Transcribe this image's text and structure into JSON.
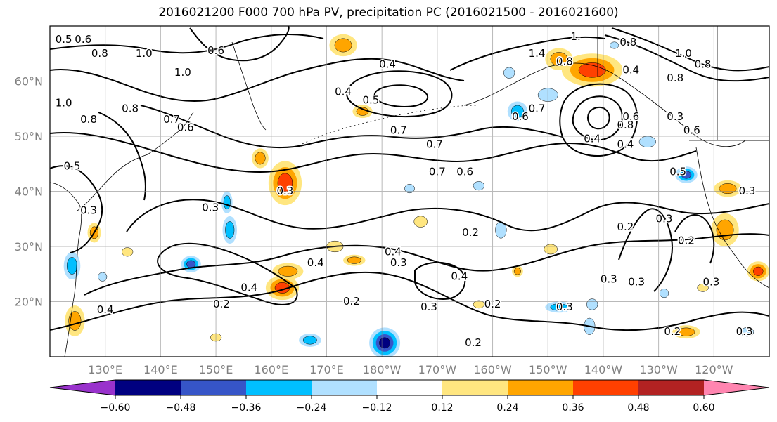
{
  "title": "2016021200 F000 700 hPa PV, precipitation PC (2016021500 - 2016021600)",
  "map": {
    "projection": "cylindrical",
    "lon_range": [
      120,
      250
    ],
    "lat_range": [
      10,
      70
    ],
    "grid": true,
    "lat_labels": [
      {
        "lat": 60,
        "label": "60°N"
      },
      {
        "lat": 50,
        "label": "50°N"
      },
      {
        "lat": 40,
        "label": "40°N"
      },
      {
        "lat": 30,
        "label": "30°N"
      },
      {
        "lat": 20,
        "label": "20°N"
      }
    ],
    "lon_labels": [
      {
        "lon": 130,
        "label": "130°E"
      },
      {
        "lon": 140,
        "label": "140°E"
      },
      {
        "lon": 150,
        "label": "150°E"
      },
      {
        "lon": 160,
        "label": "160°E"
      },
      {
        "lon": 170,
        "label": "170°E"
      },
      {
        "lon": 180,
        "label": "180°W"
      },
      {
        "lon": 190,
        "label": "170°W"
      },
      {
        "lon": 200,
        "label": "160°W"
      },
      {
        "lon": 210,
        "label": "150°W"
      },
      {
        "lon": 220,
        "label": "140°W"
      },
      {
        "lon": 230,
        "label": "130°W"
      },
      {
        "lon": 240,
        "label": "120°W"
      }
    ]
  },
  "colorbar": {
    "extend": "both",
    "boundaries": [
      -0.72,
      -0.6,
      -0.48,
      -0.36,
      -0.24,
      -0.12,
      0.12,
      0.24,
      0.36,
      0.48,
      0.6,
      0.72
    ],
    "colors": [
      "#9932cc",
      "#000080",
      "#3655c8",
      "#00bfff",
      "#b0e0ff",
      "#ffffff",
      "#ffe680",
      "#ffa500",
      "#ff4000",
      "#b22222",
      "#ff85b0"
    ],
    "tick_labels": [
      "−0.60",
      "−0.48",
      "−0.36",
      "−0.24",
      "−0.12",
      "0.12",
      "0.24",
      "0.36",
      "0.48",
      "0.60"
    ]
  },
  "precip_blobs": [
    {
      "lon": 162.5,
      "lat": 41.5,
      "rx": 3.0,
      "ry": 4.0,
      "value": 0.45
    },
    {
      "lon": 158.0,
      "lat": 46.0,
      "rx": 1.5,
      "ry": 1.8,
      "value": 0.38
    },
    {
      "lon": 218.0,
      "lat": 62.0,
      "rx": 5.5,
      "ry": 3.0,
      "value": 0.42
    },
    {
      "lon": 212.0,
      "lat": 64.0,
      "rx": 2.5,
      "ry": 2.0,
      "value": 0.32
    },
    {
      "lon": 173.0,
      "lat": 66.5,
      "rx": 2.5,
      "ry": 2.0,
      "value": 0.36
    },
    {
      "lon": 176.5,
      "lat": 54.5,
      "rx": 1.8,
      "ry": 1.2,
      "value": 0.3
    },
    {
      "lon": 162.0,
      "lat": 22.5,
      "rx": 3.0,
      "ry": 2.2,
      "value": 0.42
    },
    {
      "lon": 163.0,
      "lat": 25.5,
      "rx": 2.8,
      "ry": 1.5,
      "value": 0.38
    },
    {
      "lon": 124.5,
      "lat": 16.5,
      "rx": 1.8,
      "ry": 2.8,
      "value": 0.4
    },
    {
      "lon": 128.0,
      "lat": 32.5,
      "rx": 1.2,
      "ry": 1.8,
      "value": 0.4
    },
    {
      "lon": 242.0,
      "lat": 33.0,
      "rx": 2.5,
      "ry": 3.0,
      "value": 0.35
    },
    {
      "lon": 248.0,
      "lat": 25.5,
      "rx": 2.0,
      "ry": 1.8,
      "value": 0.48
    },
    {
      "lon": 235.0,
      "lat": 14.5,
      "rx": 2.5,
      "ry": 1.2,
      "value": 0.38
    },
    {
      "lon": 175.0,
      "lat": 27.5,
      "rx": 2.0,
      "ry": 1.0,
      "value": 0.3
    },
    {
      "lon": 204.5,
      "lat": 25.5,
      "rx": 1.0,
      "ry": 1.0,
      "value": 0.3
    },
    {
      "lon": 210.5,
      "lat": 29.5,
      "rx": 1.2,
      "ry": 0.9,
      "value": 0.28
    },
    {
      "lon": 242.5,
      "lat": 40.5,
      "rx": 2.5,
      "ry": 1.5,
      "value": 0.32
    },
    {
      "lon": 187.0,
      "lat": 34.5,
      "rx": 1.2,
      "ry": 1.0,
      "value": 0.28
    },
    {
      "lon": 134.0,
      "lat": 29.0,
      "rx": 1.0,
      "ry": 0.8,
      "value": 0.25
    },
    {
      "lon": 150.0,
      "lat": 13.5,
      "rx": 1.0,
      "ry": 0.7,
      "value": 0.25
    },
    {
      "lon": 197.5,
      "lat": 19.5,
      "rx": 1.0,
      "ry": 0.7,
      "value": 0.25
    },
    {
      "lon": 238.0,
      "lat": 22.5,
      "rx": 1.0,
      "ry": 0.7,
      "value": 0.2
    },
    {
      "lon": 171.5,
      "lat": 30.0,
      "rx": 1.5,
      "ry": 1.0,
      "value": 0.25
    },
    {
      "lon": 145.5,
      "lat": 26.8,
      "rx": 1.8,
      "ry": 1.5,
      "value": -0.45
    },
    {
      "lon": 180.5,
      "lat": 12.5,
      "rx": 2.8,
      "ry": 2.8,
      "value": -0.55
    },
    {
      "lon": 167.0,
      "lat": 13.0,
      "rx": 2.0,
      "ry": 1.2,
      "value": -0.4
    },
    {
      "lon": 152.5,
      "lat": 33.0,
      "rx": 1.3,
      "ry": 2.5,
      "value": -0.3
    },
    {
      "lon": 152.0,
      "lat": 38.0,
      "rx": 1.0,
      "ry": 2.0,
      "value": -0.3
    },
    {
      "lon": 124.0,
      "lat": 26.5,
      "rx": 1.5,
      "ry": 2.5,
      "value": -0.3
    },
    {
      "lon": 204.5,
      "lat": 54.5,
      "rx": 1.8,
      "ry": 1.8,
      "value": -0.38
    },
    {
      "lon": 210.0,
      "lat": 57.5,
      "rx": 1.8,
      "ry": 1.2,
      "value": -0.28
    },
    {
      "lon": 235.0,
      "lat": 43.0,
      "rx": 2.0,
      "ry": 1.5,
      "value": -0.42
    },
    {
      "lon": 201.5,
      "lat": 33.0,
      "rx": 1.0,
      "ry": 1.5,
      "value": -0.28
    },
    {
      "lon": 212.0,
      "lat": 19.0,
      "rx": 2.5,
      "ry": 1.0,
      "value": -0.32
    },
    {
      "lon": 217.5,
      "lat": 15.5,
      "rx": 1.0,
      "ry": 1.5,
      "value": -0.28
    },
    {
      "lon": 218.0,
      "lat": 19.5,
      "rx": 1.0,
      "ry": 1.0,
      "value": -0.24
    },
    {
      "lon": 203.0,
      "lat": 61.5,
      "rx": 1.0,
      "ry": 1.0,
      "value": -0.28
    },
    {
      "lon": 228.0,
      "lat": 49.0,
      "rx": 1.5,
      "ry": 1.0,
      "value": -0.26
    },
    {
      "lon": 197.5,
      "lat": 41.0,
      "rx": 1.0,
      "ry": 0.8,
      "value": -0.24
    },
    {
      "lon": 185.0,
      "lat": 40.5,
      "rx": 0.9,
      "ry": 0.8,
      "value": -0.24
    },
    {
      "lon": 246.0,
      "lat": 14.5,
      "rx": 1.2,
      "ry": 0.8,
      "value": -0.26
    },
    {
      "lon": 231.0,
      "lat": 21.5,
      "rx": 0.8,
      "ry": 0.8,
      "value": -0.24
    },
    {
      "lon": 222.0,
      "lat": 66.5,
      "rx": 0.8,
      "ry": 0.6,
      "value": -0.22
    },
    {
      "lon": 129.5,
      "lat": 24.5,
      "rx": 0.8,
      "ry": 0.8,
      "value": -0.22
    }
  ],
  "pv_contour_labels": [
    {
      "lon": 122.5,
      "lat": 67.5,
      "text": "0.5"
    },
    {
      "lon": 126.0,
      "lat": 67.5,
      "text": "0.6"
    },
    {
      "lon": 129.0,
      "lat": 65.0,
      "text": "0.8"
    },
    {
      "lon": 137.0,
      "lat": 65.0,
      "text": "1.0"
    },
    {
      "lon": 144.0,
      "lat": 61.5,
      "text": "1.0"
    },
    {
      "lon": 150.0,
      "lat": 65.5,
      "text": "0.6"
    },
    {
      "lon": 122.5,
      "lat": 56.0,
      "text": "1.0"
    },
    {
      "lon": 127.0,
      "lat": 53.0,
      "text": "0.8"
    },
    {
      "lon": 134.5,
      "lat": 55.0,
      "text": "0.8"
    },
    {
      "lon": 142.0,
      "lat": 53.0,
      "text": "0.7"
    },
    {
      "lon": 144.5,
      "lat": 51.5,
      "text": "0.6"
    },
    {
      "lon": 124.0,
      "lat": 44.5,
      "text": "0.5"
    },
    {
      "lon": 127.0,
      "lat": 36.5,
      "text": "0.3"
    },
    {
      "lon": 149.0,
      "lat": 37.0,
      "text": "0.3"
    },
    {
      "lon": 162.5,
      "lat": 40.0,
      "text": "0.3"
    },
    {
      "lon": 168.0,
      "lat": 27.0,
      "text": "0.4"
    },
    {
      "lon": 156.0,
      "lat": 22.5,
      "text": "0.4"
    },
    {
      "lon": 151.0,
      "lat": 19.5,
      "text": "0.2"
    },
    {
      "lon": 130.0,
      "lat": 18.5,
      "text": "0.4"
    },
    {
      "lon": 174.5,
      "lat": 20.0,
      "text": "0.2"
    },
    {
      "lon": 178.0,
      "lat": 56.5,
      "text": "0.5"
    },
    {
      "lon": 173.0,
      "lat": 58.0,
      "text": "0.4"
    },
    {
      "lon": 181.0,
      "lat": 63.0,
      "text": "0.4"
    },
    {
      "lon": 189.5,
      "lat": 48.5,
      "text": "0.7"
    },
    {
      "lon": 190.0,
      "lat": 43.5,
      "text": "0.7"
    },
    {
      "lon": 195.0,
      "lat": 43.5,
      "text": "0.6"
    },
    {
      "lon": 183.0,
      "lat": 51.0,
      "text": "0.7"
    },
    {
      "lon": 182.0,
      "lat": 29.0,
      "text": "0.4"
    },
    {
      "lon": 183.0,
      "lat": 27.0,
      "text": "0.3"
    },
    {
      "lon": 196.0,
      "lat": 32.5,
      "text": "0.2"
    },
    {
      "lon": 194.0,
      "lat": 24.5,
      "text": "0.4"
    },
    {
      "lon": 188.5,
      "lat": 19.0,
      "text": "0.3"
    },
    {
      "lon": 196.5,
      "lat": 12.5,
      "text": "0.2"
    },
    {
      "lon": 200.0,
      "lat": 19.5,
      "text": "0.2"
    },
    {
      "lon": 205.0,
      "lat": 53.5,
      "text": "0.6"
    },
    {
      "lon": 208.0,
      "lat": 55.0,
      "text": "0.7"
    },
    {
      "lon": 208.0,
      "lat": 65.0,
      "text": "1.4"
    },
    {
      "lon": 213.0,
      "lat": 63.5,
      "text": "0.8"
    },
    {
      "lon": 215.0,
      "lat": 68.0,
      "text": "1."
    },
    {
      "lon": 213.0,
      "lat": 19.0,
      "text": "0.3"
    },
    {
      "lon": 221.0,
      "lat": 24.0,
      "text": "0.3"
    },
    {
      "lon": 218.0,
      "lat": 49.5,
      "text": "0.4"
    },
    {
      "lon": 224.0,
      "lat": 48.5,
      "text": "0.4"
    },
    {
      "lon": 224.0,
      "lat": 52.0,
      "text": "0.8"
    },
    {
      "lon": 225.0,
      "lat": 53.5,
      "text": "0.6"
    },
    {
      "lon": 225.0,
      "lat": 62.0,
      "text": "0.4"
    },
    {
      "lon": 224.5,
      "lat": 67.0,
      "text": "0.8"
    },
    {
      "lon": 233.0,
      "lat": 53.5,
      "text": "0.3"
    },
    {
      "lon": 236.0,
      "lat": 51.0,
      "text": "0.6"
    },
    {
      "lon": 233.0,
      "lat": 60.5,
      "text": "0.8"
    },
    {
      "lon": 234.5,
      "lat": 65.0,
      "text": "1.0"
    },
    {
      "lon": 224.0,
      "lat": 33.5,
      "text": "0.2"
    },
    {
      "lon": 231.0,
      "lat": 35.0,
      "text": "0.3"
    },
    {
      "lon": 235.0,
      "lat": 31.0,
      "text": "0.2"
    },
    {
      "lon": 239.5,
      "lat": 23.5,
      "text": "0.3"
    },
    {
      "lon": 232.5,
      "lat": 14.5,
      "text": "0.2"
    },
    {
      "lon": 245.5,
      "lat": 14.5,
      "text": "0.3"
    },
    {
      "lon": 246.0,
      "lat": 40.0,
      "text": "0.3"
    },
    {
      "lon": 226.0,
      "lat": 23.5,
      "text": "0.3"
    },
    {
      "lon": 233.5,
      "lat": 43.5,
      "text": "0.5"
    },
    {
      "lon": 238.0,
      "lat": 63.0,
      "text": "0.8"
    }
  ]
}
